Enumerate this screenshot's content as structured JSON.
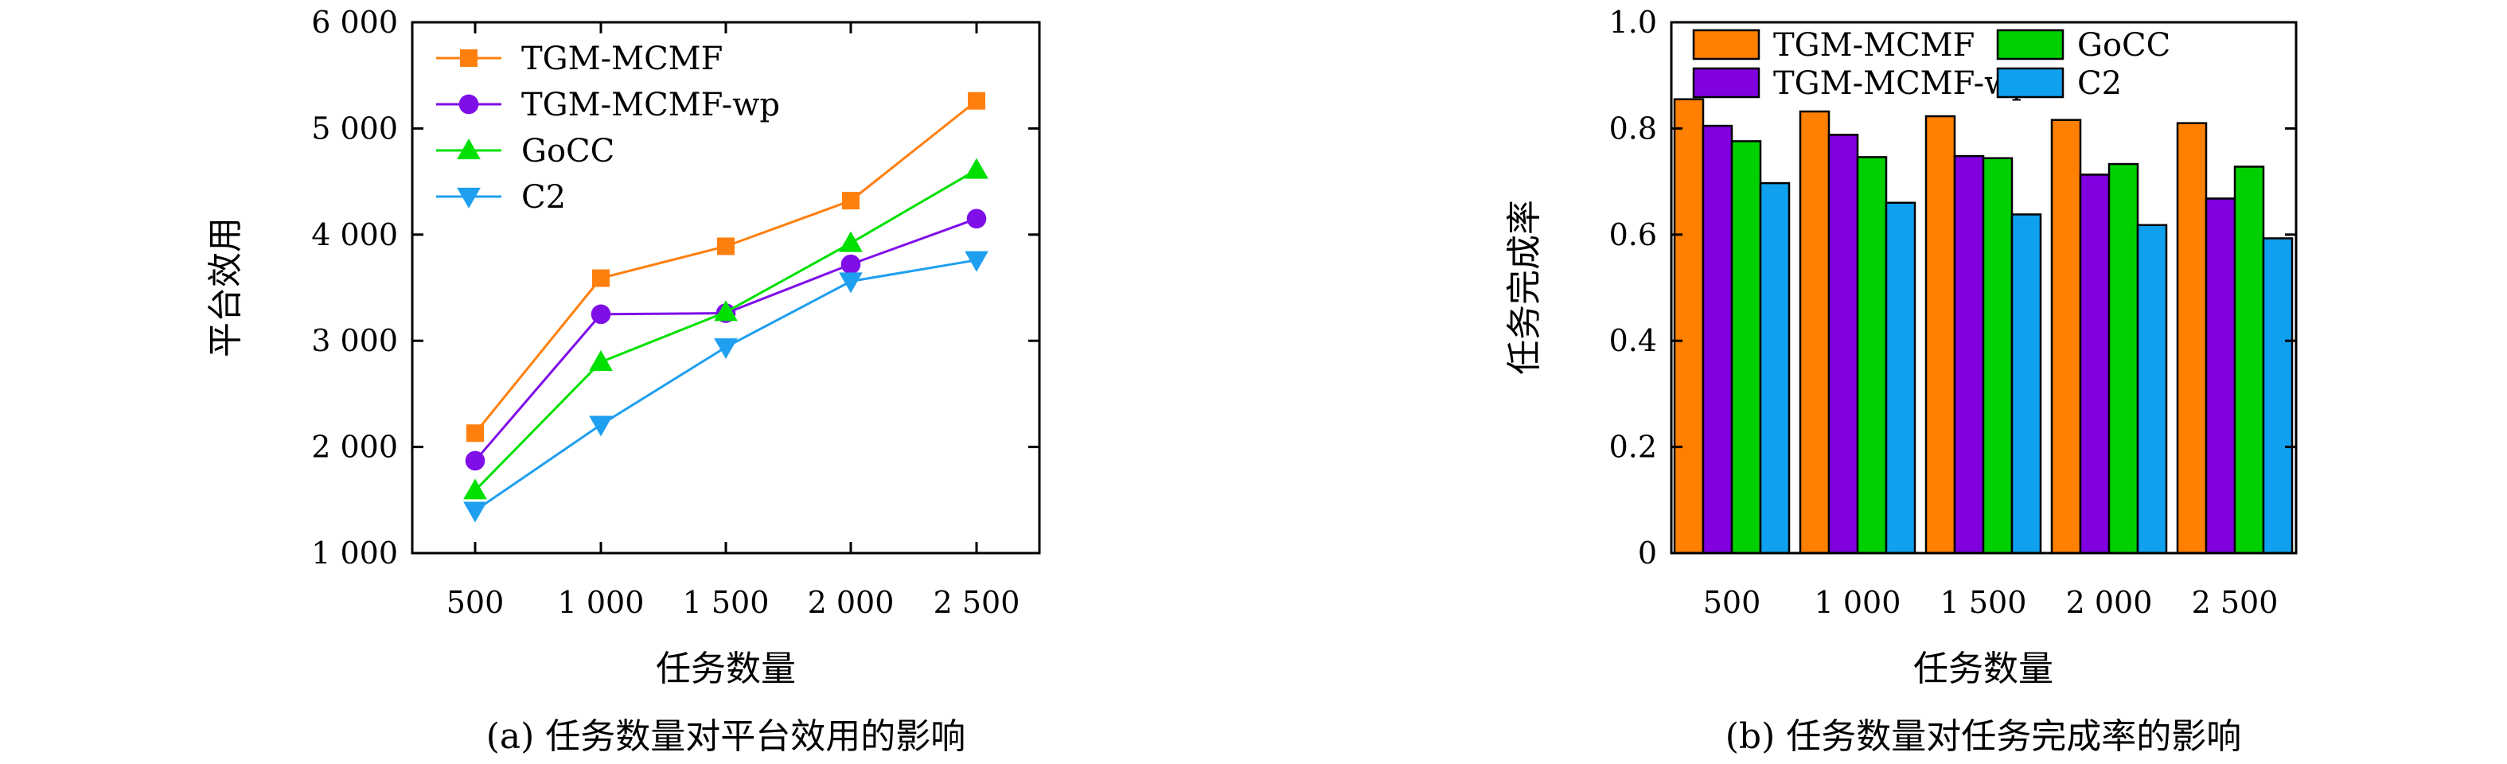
{
  "figure_captions": [
    "(a) 任务数量对平台效用的影响",
    "(b) 任务数量对任务完成率的影响"
  ],
  "chart_data": [
    {
      "type": "line",
      "xlabel": "任务数量",
      "ylabel": "平台效用",
      "categories": [
        "500",
        "1 000",
        "1 500",
        "2 000",
        "2 500"
      ],
      "y_ticks": [
        "1 000",
        "2 000",
        "3 000",
        "4 000",
        "5 000",
        "6 000"
      ],
      "ylim": [
        1000,
        6000
      ],
      "grid": false,
      "legend_position": "top-left",
      "series": [
        {
          "name": "TGM-MCMF",
          "marker": "square",
          "color": "#ff7f0e",
          "values": [
            2130,
            3590,
            3890,
            4320,
            5260
          ]
        },
        {
          "name": "TGM-MCMF-wp",
          "marker": "circle",
          "color": "#7f0ee8",
          "values": [
            1870,
            3250,
            3260,
            3720,
            4150
          ]
        },
        {
          "name": "GoCC",
          "marker": "triangle-up",
          "color": "#00e000",
          "values": [
            1590,
            2800,
            3270,
            3920,
            4610
          ]
        },
        {
          "name": "C2",
          "marker": "triangle-down",
          "color": "#1f9fef",
          "values": [
            1400,
            2210,
            2940,
            3560,
            3760
          ]
        }
      ]
    },
    {
      "type": "bar",
      "xlabel": "任务数量",
      "ylabel": "任务完成率",
      "categories": [
        "500",
        "1 000",
        "1 500",
        "2 000",
        "2 500"
      ],
      "y_ticks": [
        "0",
        "0.2",
        "0.4",
        "0.6",
        "0.8",
        "1.0"
      ],
      "ylim": [
        0,
        1.0
      ],
      "grid": false,
      "legend_position": "top",
      "series": [
        {
          "name": "TGM-MCMF",
          "color": "#ff7f00",
          "values": [
            0.855,
            0.832,
            0.823,
            0.816,
            0.81
          ]
        },
        {
          "name": "TGM-MCMF-wp",
          "color": "#8000e0",
          "values": [
            0.805,
            0.788,
            0.748,
            0.713,
            0.668
          ]
        },
        {
          "name": "GoCC",
          "color": "#00d000",
          "values": [
            0.776,
            0.746,
            0.744,
            0.733,
            0.728
          ]
        },
        {
          "name": "C2",
          "color": "#10a0f0",
          "values": [
            0.697,
            0.66,
            0.638,
            0.618,
            0.593
          ]
        }
      ]
    }
  ]
}
